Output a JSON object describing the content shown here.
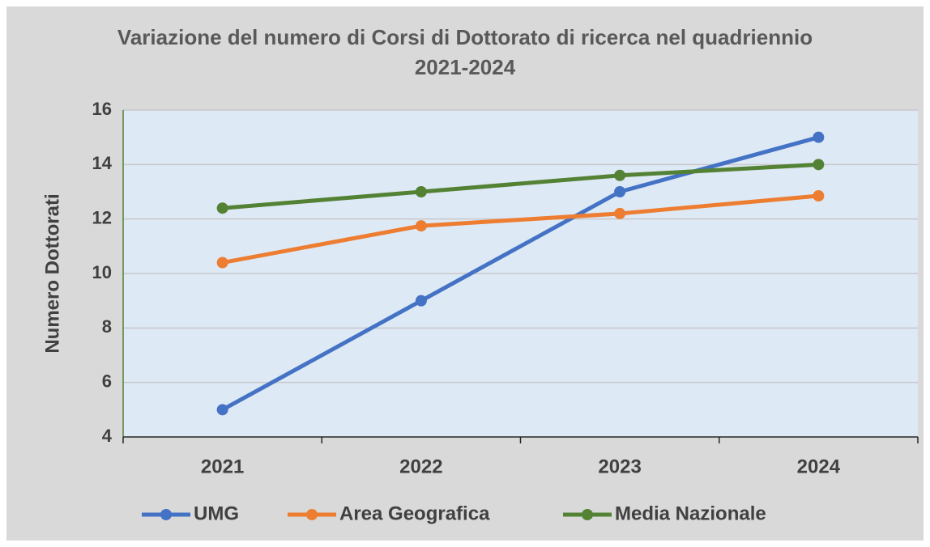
{
  "chart_data": {
    "type": "line",
    "title": "Variazione del numero di Corsi di Dottorato di ricerca nel quadriennio 2021-2024",
    "ylabel": "Numero Dottorati",
    "categories": [
      "2021",
      "2022",
      "2023",
      "2024"
    ],
    "series": [
      {
        "name": "UMG",
        "color": "#4472c4",
        "values": [
          5,
          9,
          13,
          15
        ]
      },
      {
        "name": "Area Geografica",
        "color": "#ed7d31",
        "values": [
          10.4,
          11.75,
          12.2,
          12.85
        ]
      },
      {
        "name": "Media Nazionale",
        "color": "#548235",
        "values": [
          12.4,
          13.0,
          13.6,
          14.0
        ]
      }
    ],
    "ylim": [
      4,
      16
    ],
    "yticks": [
      4,
      6,
      8,
      10,
      12,
      14,
      16
    ],
    "grid": true,
    "legend": "bottom",
    "markers": true
  }
}
